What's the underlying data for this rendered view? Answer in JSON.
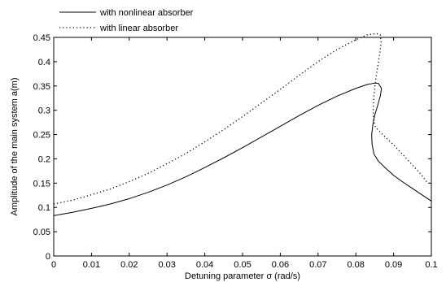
{
  "chart_data": {
    "type": "line",
    "xlabel": "Detuning parameter σ (rad/s)",
    "ylabel": "Amplitude of the main system a(m)",
    "xlim": [
      0,
      0.1
    ],
    "ylim": [
      0,
      0.45
    ],
    "x_ticks": [
      "0",
      "0.01",
      "0.02",
      "0.03",
      "0.04",
      "0.05",
      "0.06",
      "0.07",
      "0.08",
      "0.09",
      "0.1"
    ],
    "y_ticks": [
      "0",
      "0.05",
      "0.1",
      "0.15",
      "0.2",
      "0.25",
      "0.3",
      "0.35",
      "0.4",
      "0.45"
    ],
    "grid": false,
    "legend_position": "top-left",
    "series": [
      {
        "name": "with nonlinear absorber",
        "style": "solid",
        "color": "#000000",
        "points": [
          [
            0,
            0.083
          ],
          [
            0.005,
            0.09
          ],
          [
            0.01,
            0.098
          ],
          [
            0.015,
            0.107
          ],
          [
            0.02,
            0.118
          ],
          [
            0.025,
            0.131
          ],
          [
            0.03,
            0.146
          ],
          [
            0.035,
            0.163
          ],
          [
            0.04,
            0.182
          ],
          [
            0.045,
            0.202
          ],
          [
            0.05,
            0.223
          ],
          [
            0.055,
            0.245
          ],
          [
            0.06,
            0.267
          ],
          [
            0.065,
            0.289
          ],
          [
            0.07,
            0.31
          ],
          [
            0.075,
            0.329
          ],
          [
            0.08,
            0.345
          ],
          [
            0.083,
            0.353
          ],
          [
            0.085,
            0.356
          ],
          [
            0.086,
            0.355
          ],
          [
            0.0868,
            0.345
          ],
          [
            0.0865,
            0.33
          ],
          [
            0.0858,
            0.31
          ],
          [
            0.085,
            0.29
          ],
          [
            0.0845,
            0.27
          ],
          [
            0.0842,
            0.25
          ],
          [
            0.0843,
            0.23
          ],
          [
            0.0848,
            0.21
          ],
          [
            0.086,
            0.195
          ],
          [
            0.088,
            0.18
          ],
          [
            0.09,
            0.166
          ],
          [
            0.0925,
            0.152
          ],
          [
            0.095,
            0.139
          ],
          [
            0.0975,
            0.126
          ],
          [
            0.1,
            0.113
          ]
        ]
      },
      {
        "name": "with linear absorber",
        "style": "dotted",
        "color": "#000000",
        "points": [
          [
            0,
            0.107
          ],
          [
            0.005,
            0.115
          ],
          [
            0.01,
            0.126
          ],
          [
            0.015,
            0.138
          ],
          [
            0.02,
            0.153
          ],
          [
            0.025,
            0.17
          ],
          [
            0.03,
            0.19
          ],
          [
            0.035,
            0.211
          ],
          [
            0.04,
            0.235
          ],
          [
            0.045,
            0.26
          ],
          [
            0.05,
            0.287
          ],
          [
            0.055,
            0.315
          ],
          [
            0.06,
            0.343
          ],
          [
            0.065,
            0.372
          ],
          [
            0.07,
            0.4
          ],
          [
            0.075,
            0.425
          ],
          [
            0.08,
            0.445
          ],
          [
            0.083,
            0.455
          ],
          [
            0.0855,
            0.458
          ],
          [
            0.0865,
            0.455
          ],
          [
            0.0867,
            0.44
          ],
          [
            0.0864,
            0.42
          ],
          [
            0.0858,
            0.39
          ],
          [
            0.0852,
            0.36
          ],
          [
            0.0848,
            0.33
          ],
          [
            0.0846,
            0.3
          ],
          [
            0.0847,
            0.28
          ],
          [
            0.0852,
            0.265
          ],
          [
            0.0865,
            0.255
          ],
          [
            0.088,
            0.243
          ],
          [
            0.09,
            0.229
          ],
          [
            0.0925,
            0.208
          ],
          [
            0.095,
            0.187
          ],
          [
            0.0975,
            0.166
          ],
          [
            0.099,
            0.15
          ]
        ]
      }
    ]
  }
}
